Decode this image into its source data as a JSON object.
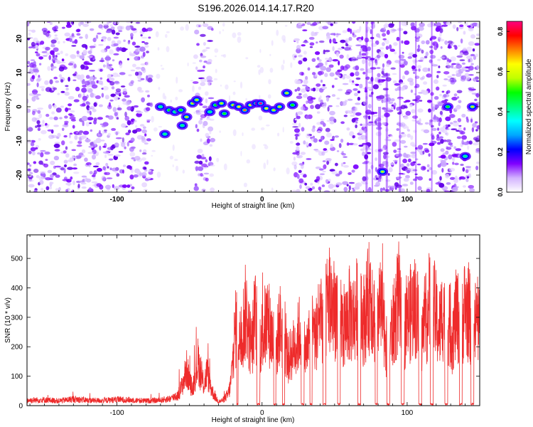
{
  "title": "S196.2026.014.14.17.R20",
  "chart_data": [
    {
      "type": "heatmap",
      "xlabel": "Height of straight line (km)",
      "ylabel": "Frequency (Hz)",
      "xlim": [
        -162,
        150
      ],
      "ylim": [
        -25,
        25
      ],
      "xticks": [
        -100,
        0,
        100
      ],
      "yticks": [
        -20,
        -10,
        0,
        10,
        20
      ],
      "colorbar": {
        "label": "Normalized spectral amplitude",
        "range": [
          0.0,
          0.85
        ],
        "ticks": [
          "0.0",
          "0.2",
          "0.4",
          "0.6",
          "0.8"
        ],
        "stops": [
          "#ffffff",
          "#d3b3ff",
          "#8000ff",
          "#0000ff",
          "#00a6ff",
          "#00ffff",
          "#00ff80",
          "#00ff00",
          "#c0ff00",
          "#ffff00",
          "#ff8000",
          "#ff0000",
          "#ff0080"
        ]
      },
      "noise_regions_km": [
        [
          -162,
          -76
        ],
        [
          -46,
          -34
        ],
        [
          22,
          150
        ]
      ],
      "gap_regions_km": [
        [
          -76,
          -46
        ],
        [
          -34,
          -22
        ],
        [
          -20,
          22
        ]
      ],
      "signal_track": [
        {
          "x": -70,
          "f": 0.0,
          "a": 0.45
        },
        {
          "x": -64,
          "f": -1.0,
          "a": 0.5
        },
        {
          "x": -60,
          "f": -1.5,
          "a": 0.4
        },
        {
          "x": -56,
          "f": -1.0,
          "a": 0.5
        },
        {
          "x": -52,
          "f": -3.0,
          "a": 0.55
        },
        {
          "x": -48,
          "f": 1.0,
          "a": 0.6
        },
        {
          "x": -45,
          "f": 2.0,
          "a": 0.6
        },
        {
          "x": -36,
          "f": -1.5,
          "a": 0.45
        },
        {
          "x": -32,
          "f": 0.5,
          "a": 0.5
        },
        {
          "x": -28,
          "f": 1.0,
          "a": 0.55
        },
        {
          "x": -26,
          "f": -2.0,
          "a": 0.5
        },
        {
          "x": -20,
          "f": 0.5,
          "a": 0.6
        },
        {
          "x": -16,
          "f": 0.0,
          "a": 0.65
        },
        {
          "x": -12,
          "f": -1.0,
          "a": 0.7
        },
        {
          "x": -8,
          "f": 0.5,
          "a": 0.65
        },
        {
          "x": -4,
          "f": 1.0,
          "a": 0.75
        },
        {
          "x": -1,
          "f": 1.0,
          "a": 0.85
        },
        {
          "x": 3,
          "f": -0.5,
          "a": 0.65
        },
        {
          "x": 8,
          "f": -1.0,
          "a": 0.6
        },
        {
          "x": 12,
          "f": 0.0,
          "a": 0.6
        },
        {
          "x": 17,
          "f": 4.0,
          "a": 0.55
        },
        {
          "x": 21,
          "f": 0.5,
          "a": 0.5
        },
        {
          "x": 128,
          "f": 0.0,
          "a": 0.5
        },
        {
          "x": 140,
          "f": -14.5,
          "a": 0.4
        },
        {
          "x": 145,
          "f": 0.0,
          "a": 0.6
        },
        {
          "x": -67,
          "f": -8.0,
          "a": 0.45
        },
        {
          "x": -55,
          "f": -5.5,
          "a": 0.4
        },
        {
          "x": 83,
          "f": -19.0,
          "a": 0.55
        }
      ]
    },
    {
      "type": "line",
      "xlabel": "Height of straight line (km)",
      "ylabel": "SNR (10 * v/v)",
      "xlim": [
        -162,
        150
      ],
      "ylim": [
        0,
        580
      ],
      "xticks": [
        -100,
        0,
        100
      ],
      "yticks": [
        0,
        100,
        200,
        300,
        400,
        500
      ],
      "series": [
        {
          "name": "SNR",
          "color": "#ee2b2b",
          "x": [
            -162,
            -150,
            -140,
            -130,
            -120,
            -110,
            -100,
            -90,
            -80,
            -70,
            -62,
            -58,
            -55,
            -52,
            -50,
            -48,
            -46,
            -44,
            -42,
            -40,
            -38,
            -36,
            -34,
            -32,
            -30,
            -28,
            -26,
            -24,
            -22,
            -20,
            -19,
            -17,
            -15,
            -13,
            -11,
            -9,
            -7,
            -5,
            -3,
            -2,
            1,
            4,
            7,
            10,
            12,
            15,
            18,
            20,
            24,
            27,
            30,
            34,
            37,
            40,
            43,
            46,
            50,
            53,
            56,
            60,
            63,
            66,
            69,
            72,
            75,
            78,
            80,
            84,
            86,
            88,
            91,
            94,
            97,
            100,
            103,
            106,
            110,
            113,
            116,
            119,
            122,
            125,
            128,
            131,
            134,
            137,
            140,
            143,
            146,
            148,
            150
          ],
          "values": [
            20,
            22,
            18,
            25,
            20,
            19,
            23,
            21,
            18,
            20,
            28,
            45,
            90,
            160,
            110,
            70,
            140,
            200,
            120,
            90,
            150,
            95,
            60,
            30,
            15,
            18,
            25,
            40,
            80,
            210,
            300,
            380,
            280,
            350,
            420,
            310,
            260,
            400,
            330,
            260,
            330,
            380,
            300,
            250,
            360,
            300,
            200,
            230,
            280,
            350,
            220,
            340,
            300,
            420,
            380,
            470,
            420,
            450,
            320,
            400,
            380,
            440,
            360,
            420,
            510,
            360,
            430,
            380,
            240,
            300,
            360,
            480,
            300,
            380,
            410,
            440,
            300,
            380,
            460,
            410,
            330,
            420,
            380,
            300,
            400,
            360,
            430,
            390,
            340,
            380,
            330
          ],
          "dropouts_km": [
            [
              -17.5,
              -16.5
            ],
            [
              -3.5,
              -1.5
            ],
            [
              8,
              9.5
            ],
            [
              14,
              15.5
            ],
            [
              27,
              29
            ],
            [
              33,
              34.5
            ],
            [
              42,
              44
            ],
            [
              52,
              54
            ],
            [
              66,
              68
            ],
            [
              78,
              79.5
            ],
            [
              86,
              88
            ],
            [
              96,
              98
            ],
            [
              108,
              110
            ],
            [
              116,
              118
            ],
            [
              126,
              128
            ],
            [
              136,
              138
            ],
            [
              144,
              146
            ]
          ]
        }
      ]
    }
  ]
}
